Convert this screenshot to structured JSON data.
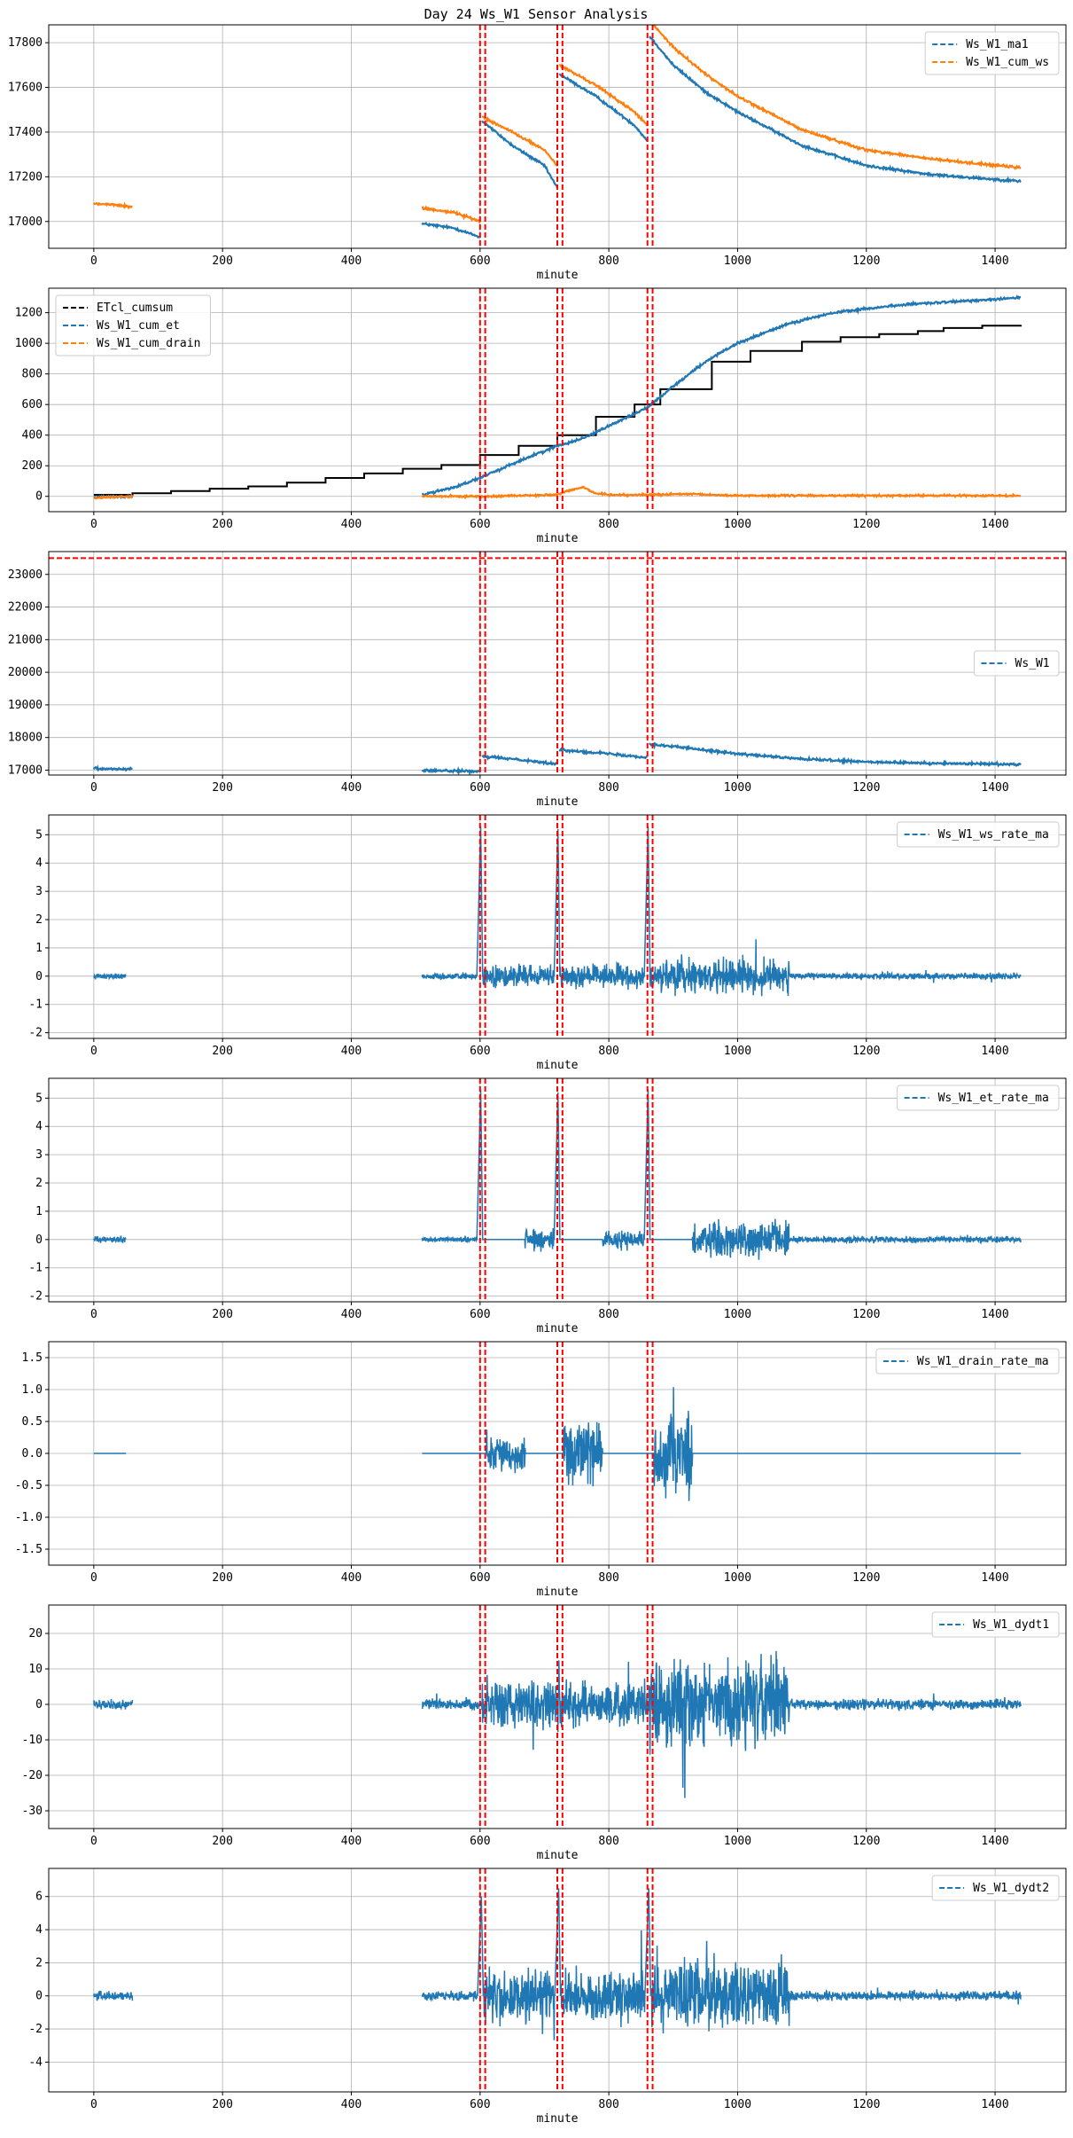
{
  "figure_title": "Day 24 Ws_W1 Sensor Analysis",
  "colors": {
    "blue": "#1f77b4",
    "orange": "#ff7f0e",
    "black": "#000000",
    "red": "#ff0000",
    "grid": "#b0b0b0"
  },
  "chart_data": [
    {
      "type": "line",
      "xlabel": "minute",
      "xlim": [
        -70,
        1510
      ],
      "xticks": [
        0,
        200,
        400,
        600,
        800,
        1000,
        1200,
        1400
      ],
      "ylim": [
        16880,
        17880
      ],
      "yticks": [
        17000,
        17200,
        17400,
        17600,
        17800
      ],
      "legend_position": "top-right",
      "vlines": [
        600,
        608,
        720,
        728,
        860,
        868
      ],
      "hlines": [],
      "series": [
        {
          "name": "Ws_W1_ma1",
          "color": "#1f77b4",
          "style": "noisy",
          "segments": [
            [
              [
                510,
                16990
              ],
              [
                560,
                16970
              ],
              [
                600,
                16930
              ]
            ],
            [
              [
                603,
                17450
              ],
              [
                650,
                17340
              ],
              [
                700,
                17250
              ],
              [
                720,
                17150
              ]
            ],
            [
              [
                723,
                17660
              ],
              [
                780,
                17560
              ],
              [
                840,
                17430
              ],
              [
                860,
                17360
              ]
            ],
            [
              [
                863,
                17830
              ],
              [
                900,
                17700
              ],
              [
                950,
                17580
              ],
              [
                1000,
                17490
              ],
              [
                1100,
                17340
              ],
              [
                1200,
                17250
              ],
              [
                1300,
                17210
              ],
              [
                1440,
                17180
              ]
            ]
          ]
        },
        {
          "name": "Ws_W1_cum_ws",
          "color": "#ff7f0e",
          "style": "noisy",
          "segments": [
            [
              [
                0,
                17080
              ],
              [
                30,
                17075
              ],
              [
                60,
                17065
              ]
            ],
            [
              [
                510,
                17060
              ],
              [
                560,
                17040
              ],
              [
                600,
                17000
              ]
            ],
            [
              [
                603,
                17470
              ],
              [
                650,
                17400
              ],
              [
                700,
                17320
              ],
              [
                720,
                17250
              ]
            ],
            [
              [
                723,
                17700
              ],
              [
                780,
                17610
              ],
              [
                840,
                17490
              ],
              [
                860,
                17430
              ]
            ],
            [
              [
                863,
                17900
              ],
              [
                900,
                17780
              ],
              [
                950,
                17660
              ],
              [
                1000,
                17560
              ],
              [
                1100,
                17410
              ],
              [
                1200,
                17320
              ],
              [
                1300,
                17280
              ],
              [
                1440,
                17240
              ]
            ]
          ]
        }
      ]
    },
    {
      "type": "line",
      "xlabel": "minute",
      "xlim": [
        -70,
        1510
      ],
      "xticks": [
        0,
        200,
        400,
        600,
        800,
        1000,
        1200,
        1400
      ],
      "ylim": [
        -100,
        1360
      ],
      "yticks": [
        0,
        200,
        400,
        600,
        800,
        1000,
        1200
      ],
      "legend_position": "top-left",
      "vlines": [
        600,
        608,
        720,
        728,
        860,
        868
      ],
      "hlines": [],
      "series": [
        {
          "name": "ETcl_cumsum",
          "color": "#000000",
          "style": "step",
          "steps": [
            [
              0,
              10
            ],
            [
              60,
              20
            ],
            [
              120,
              35
            ],
            [
              180,
              50
            ],
            [
              240,
              65
            ],
            [
              300,
              90
            ],
            [
              360,
              120
            ],
            [
              420,
              150
            ],
            [
              480,
              180
            ],
            [
              540,
              205
            ],
            [
              600,
              270
            ],
            [
              660,
              330
            ],
            [
              720,
              400
            ],
            [
              780,
              520
            ],
            [
              840,
              600
            ],
            [
              880,
              700
            ],
            [
              960,
              880
            ],
            [
              1020,
              950
            ],
            [
              1100,
              1010
            ],
            [
              1160,
              1040
            ],
            [
              1220,
              1060
            ],
            [
              1280,
              1080
            ],
            [
              1320,
              1100
            ],
            [
              1380,
              1115
            ],
            [
              1440,
              1120
            ]
          ]
        },
        {
          "name": "Ws_W1_cum_et",
          "color": "#1f77b4",
          "style": "noisy",
          "segments": [
            [
              [
                0,
                -5
              ],
              [
                30,
                -3
              ],
              [
                60,
                0
              ]
            ],
            [
              [
                510,
                10
              ],
              [
                560,
                60
              ],
              [
                600,
                120
              ],
              [
                660,
                230
              ],
              [
                720,
                330
              ],
              [
                760,
                380
              ],
              [
                800,
                460
              ],
              [
                860,
                580
              ],
              [
                900,
                720
              ],
              [
                950,
                880
              ],
              [
                1000,
                1000
              ],
              [
                1080,
                1130
              ],
              [
                1150,
                1200
              ],
              [
                1250,
                1250
              ],
              [
                1350,
                1275
              ],
              [
                1440,
                1300
              ]
            ]
          ]
        },
        {
          "name": "Ws_W1_cum_drain",
          "color": "#ff7f0e",
          "style": "drain",
          "segments": [
            [
              [
                0,
                -10
              ],
              [
                30,
                -5
              ],
              [
                60,
                0
              ]
            ],
            [
              [
                510,
                0
              ],
              [
                600,
                0
              ],
              [
                660,
                5
              ],
              [
                720,
                10
              ],
              [
                740,
                40
              ],
              [
                760,
                60
              ],
              [
                780,
                20
              ],
              [
                800,
                10
              ],
              [
                860,
                10
              ],
              [
                920,
                15
              ],
              [
                1000,
                5
              ],
              [
                1440,
                5
              ]
            ]
          ]
        }
      ]
    },
    {
      "type": "line",
      "xlabel": "minute",
      "xlim": [
        -70,
        1510
      ],
      "xticks": [
        0,
        200,
        400,
        600,
        800,
        1000,
        1200,
        1400
      ],
      "ylim": [
        16850,
        23700
      ],
      "yticks": [
        17000,
        18000,
        19000,
        20000,
        21000,
        22000,
        23000
      ],
      "legend_position": "center-right",
      "vlines": [
        600,
        608,
        720,
        728,
        860,
        868
      ],
      "hlines": [
        23500
      ],
      "series": [
        {
          "name": "Ws_W1",
          "color": "#1f77b4",
          "style": "noisy",
          "segments": [
            [
              [
                0,
                17050
              ],
              [
                30,
                17040
              ],
              [
                60,
                17030
              ]
            ],
            [
              [
                510,
                16990
              ],
              [
                560,
                16980
              ],
              [
                600,
                16950
              ]
            ],
            [
              [
                603,
                17420
              ],
              [
                660,
                17330
              ],
              [
                720,
                17180
              ]
            ],
            [
              [
                723,
                17620
              ],
              [
                780,
                17540
              ],
              [
                860,
                17390
              ]
            ],
            [
              [
                863,
                17800
              ],
              [
                950,
                17620
              ],
              [
                1000,
                17500
              ],
              [
                1100,
                17340
              ],
              [
                1200,
                17250
              ],
              [
                1300,
                17210
              ],
              [
                1440,
                17180
              ]
            ]
          ]
        }
      ]
    },
    {
      "type": "line",
      "xlabel": "minute",
      "xlim": [
        -70,
        1510
      ],
      "xticks": [
        0,
        200,
        400,
        600,
        800,
        1000,
        1200,
        1400
      ],
      "ylim": [
        -2.2,
        5.7
      ],
      "yticks": [
        -2,
        -1,
        0,
        1,
        2,
        3,
        4,
        5
      ],
      "legend_position": "top-right",
      "vlines": [
        600,
        608,
        720,
        728,
        860,
        868
      ],
      "hlines": [],
      "series": [
        {
          "name": "Ws_W1_ws_rate_ma",
          "color": "#1f77b4",
          "style": "rate",
          "ranges": [
            [
              0,
              50
            ],
            [
              510,
              1440
            ]
          ],
          "spikes": [
            [
              601,
              5.3
            ],
            [
              721,
              5.2
            ],
            [
              861,
              5.3
            ]
          ],
          "noise_bands": [
            [
              0,
              50,
              0.15
            ],
            [
              510,
              600,
              0.15
            ],
            [
              605,
              860,
              0.55
            ],
            [
              860,
              1080,
              0.85
            ],
            [
              1080,
              1440,
              0.15
            ]
          ]
        }
      ]
    },
    {
      "type": "line",
      "xlabel": "minute",
      "xlim": [
        -70,
        1510
      ],
      "xticks": [
        0,
        200,
        400,
        600,
        800,
        1000,
        1200,
        1400
      ],
      "ylim": [
        -2.2,
        5.7
      ],
      "yticks": [
        -2,
        -1,
        0,
        1,
        2,
        3,
        4,
        5
      ],
      "legend_position": "top-right",
      "vlines": [
        600,
        608,
        720,
        728,
        860,
        868
      ],
      "hlines": [],
      "series": [
        {
          "name": "Ws_W1_et_rate_ma",
          "color": "#1f77b4",
          "style": "rate",
          "ranges": [
            [
              0,
              50
            ],
            [
              510,
              1440
            ]
          ],
          "spikes": [
            [
              601,
              5.3
            ],
            [
              721,
              5.2
            ],
            [
              861,
              5.3
            ]
          ],
          "noise_bands": [
            [
              0,
              50,
              0.15
            ],
            [
              510,
              600,
              0.12
            ],
            [
              670,
              720,
              0.55
            ],
            [
              790,
              860,
              0.45
            ],
            [
              930,
              1080,
              0.85
            ],
            [
              1080,
              1440,
              0.15
            ]
          ]
        }
      ]
    },
    {
      "type": "line",
      "xlabel": "minute",
      "xlim": [
        -70,
        1510
      ],
      "xticks": [
        0,
        200,
        400,
        600,
        800,
        1000,
        1200,
        1400
      ],
      "ylim": [
        -1.75,
        1.75
      ],
      "yticks": [
        -1.5,
        -1.0,
        -0.5,
        0.0,
        0.5,
        1.0,
        1.5
      ],
      "ytick_labels": [
        "-1.5",
        "-1.0",
        "-0.5",
        "0.0",
        "0.5",
        "1.0",
        "1.5"
      ],
      "legend_position": "top-right",
      "vlines": [
        600,
        608,
        720,
        728,
        860,
        868
      ],
      "hlines": [],
      "series": [
        {
          "name": "Ws_W1_drain_rate_ma",
          "color": "#1f77b4",
          "style": "rate",
          "ranges": [
            [
              0,
              50
            ],
            [
              510,
              1440
            ]
          ],
          "spikes": [],
          "noise_bands": [
            [
              610,
              670,
              0.35
            ],
            [
              730,
              790,
              0.7
            ],
            [
              870,
              930,
              0.9
            ]
          ]
        }
      ]
    },
    {
      "type": "line",
      "xlabel": "minute",
      "xlim": [
        -70,
        1510
      ],
      "xticks": [
        0,
        200,
        400,
        600,
        800,
        1000,
        1200,
        1400
      ],
      "ylim": [
        -35,
        28
      ],
      "yticks": [
        -30,
        -20,
        -10,
        0,
        10,
        20
      ],
      "legend_position": "top-right",
      "vlines": [
        600,
        608,
        720,
        728,
        860,
        868
      ],
      "hlines": [],
      "series": [
        {
          "name": "Ws_W1_dydt1",
          "color": "#1f77b4",
          "style": "rate",
          "ranges": [
            [
              0,
              60
            ],
            [
              510,
              1440
            ]
          ],
          "spikes": [],
          "noise_bands": [
            [
              0,
              60,
              2
            ],
            [
              510,
              600,
              2
            ],
            [
              600,
              860,
              9
            ],
            [
              860,
              1080,
              16
            ],
            [
              1080,
              1440,
              2
            ]
          ]
        }
      ]
    },
    {
      "type": "line",
      "xlabel": "minute",
      "xlim": [
        -70,
        1510
      ],
      "xticks": [
        0,
        200,
        400,
        600,
        800,
        1000,
        1200,
        1400
      ],
      "ylim": [
        -5.8,
        7.7
      ],
      "yticks": [
        -4,
        -2,
        0,
        2,
        4,
        6
      ],
      "legend_position": "top-right",
      "vlines": [
        600,
        608,
        720,
        728,
        860,
        868
      ],
      "hlines": [],
      "series": [
        {
          "name": "Ws_W1_dydt2",
          "color": "#1f77b4",
          "style": "rate",
          "ranges": [
            [
              0,
              60
            ],
            [
              510,
              1440
            ]
          ],
          "spikes": [
            [
              602,
              6.0
            ],
            [
              722,
              6.5
            ],
            [
              862,
              6.5
            ]
          ],
          "noise_bands": [
            [
              0,
              60,
              0.4
            ],
            [
              510,
              600,
              0.4
            ],
            [
              600,
              860,
              2.2
            ],
            [
              860,
              1080,
              2.6
            ],
            [
              1080,
              1440,
              0.4
            ]
          ]
        }
      ]
    }
  ]
}
